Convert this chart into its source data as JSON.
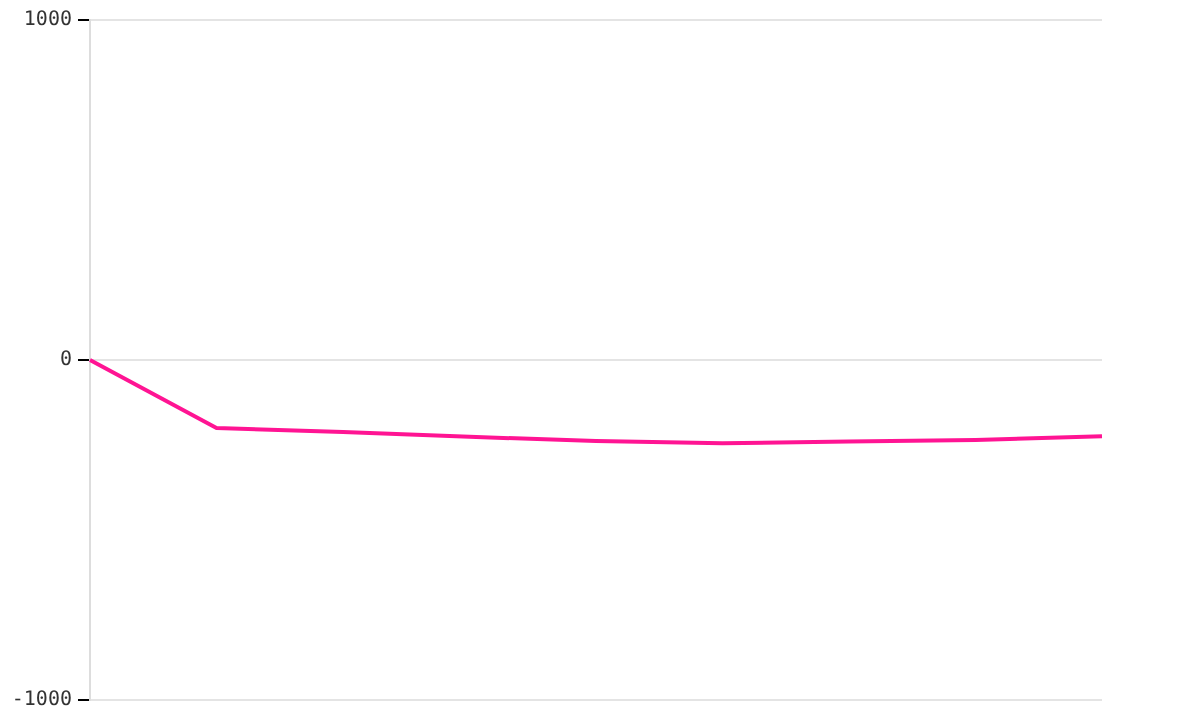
{
  "chart_data": {
    "type": "line",
    "categories": [
      null,
      null,
      null,
      null,
      null,
      null,
      null,
      null,
      null
    ],
    "series": [
      {
        "color": "#ff1493",
        "values": [
          0,
          -200,
          -212,
          -226,
          -238,
          -245,
          -240,
          -235,
          -224
        ]
      }
    ],
    "ylim": [
      -1000,
      1000
    ],
    "yticks": [
      -1000,
      0,
      1000
    ],
    "grid": "y",
    "legend": false,
    "marker": "none",
    "line_style": "solid",
    "tick_labels": "y"
  }
}
